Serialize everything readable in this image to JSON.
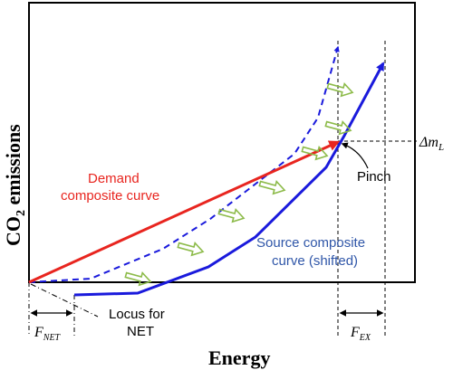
{
  "axes": {
    "ylabel_main": "CO",
    "ylabel_sub": "2",
    "ylabel_rest": " emissions",
    "xlabel": "Energy"
  },
  "labels": {
    "demand_line1": "Demand",
    "demand_line2": "composite curve",
    "source_line1": "Source composite",
    "source_line2": "curve (shifted)",
    "pinch": "Pinch",
    "locus_line1": "Locus for",
    "locus_line2": "NET",
    "delta_m_prefix": "Δm",
    "delta_m_sub": "L",
    "f_net_main": "F",
    "f_net_sub": "NET",
    "f_ex_main": "F",
    "f_ex_sub": "EX"
  },
  "colors": {
    "demand": "#e8251f",
    "source": "#1a1adc",
    "source_label": "#2f56a8",
    "shift_arrows": "#8dbb4a",
    "frame": "#000000"
  }
}
